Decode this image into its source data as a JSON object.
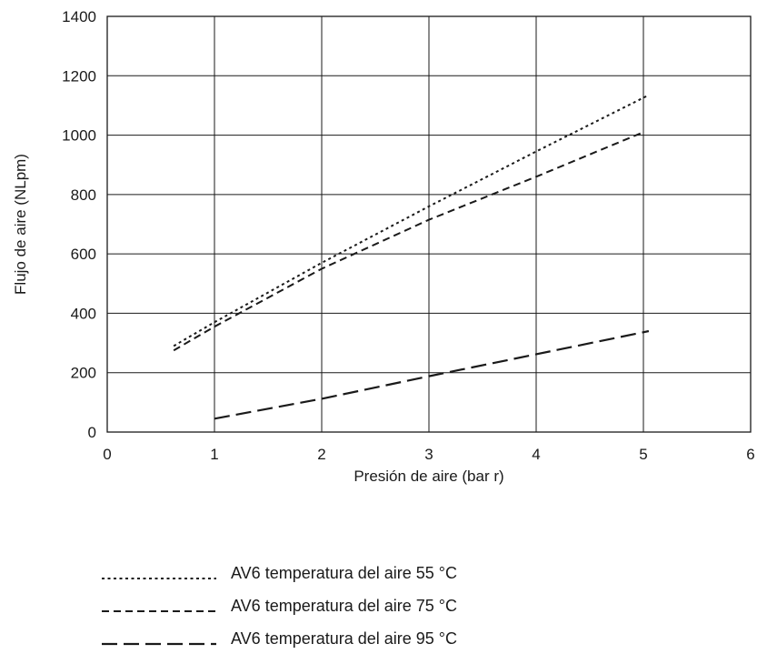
{
  "chart_data": {
    "type": "line",
    "title": "",
    "xlabel": "Presión de aire (bar r)",
    "ylabel": "Flujo de aire (NLpm)",
    "xlim": [
      0,
      6
    ],
    "ylim": [
      0,
      1400
    ],
    "xticks": [
      "0",
      "1",
      "2",
      "3",
      "4",
      "5",
      "6"
    ],
    "yticks": [
      "0",
      "200",
      "400",
      "600",
      "800",
      "1000",
      "1200",
      "1400"
    ],
    "grid": true,
    "legend_position": "bottom",
    "series": [
      {
        "name": "AV6 temperatura del aire 55 °C",
        "line_style": "dotted",
        "color": "#1a1a1a",
        "points": [
          [
            0.62,
            290
          ],
          [
            1.0,
            370
          ],
          [
            2.0,
            570
          ],
          [
            3.0,
            760
          ],
          [
            4.0,
            945
          ],
          [
            5.05,
            1135
          ]
        ]
      },
      {
        "name": "AV6 temperatura del aire 75 °C",
        "line_style": "dashed",
        "color": "#1a1a1a",
        "points": [
          [
            0.62,
            275
          ],
          [
            1.0,
            355
          ],
          [
            2.0,
            550
          ],
          [
            3.0,
            715
          ],
          [
            4.0,
            860
          ],
          [
            5.0,
            1010
          ]
        ]
      },
      {
        "name": "AV6 temperatura del aire 95 °C",
        "line_style": "long-dashed",
        "color": "#1a1a1a",
        "points": [
          [
            1.0,
            45
          ],
          [
            2.0,
            112
          ],
          [
            3.0,
            188
          ],
          [
            4.0,
            262
          ],
          [
            5.05,
            340
          ]
        ]
      }
    ]
  }
}
